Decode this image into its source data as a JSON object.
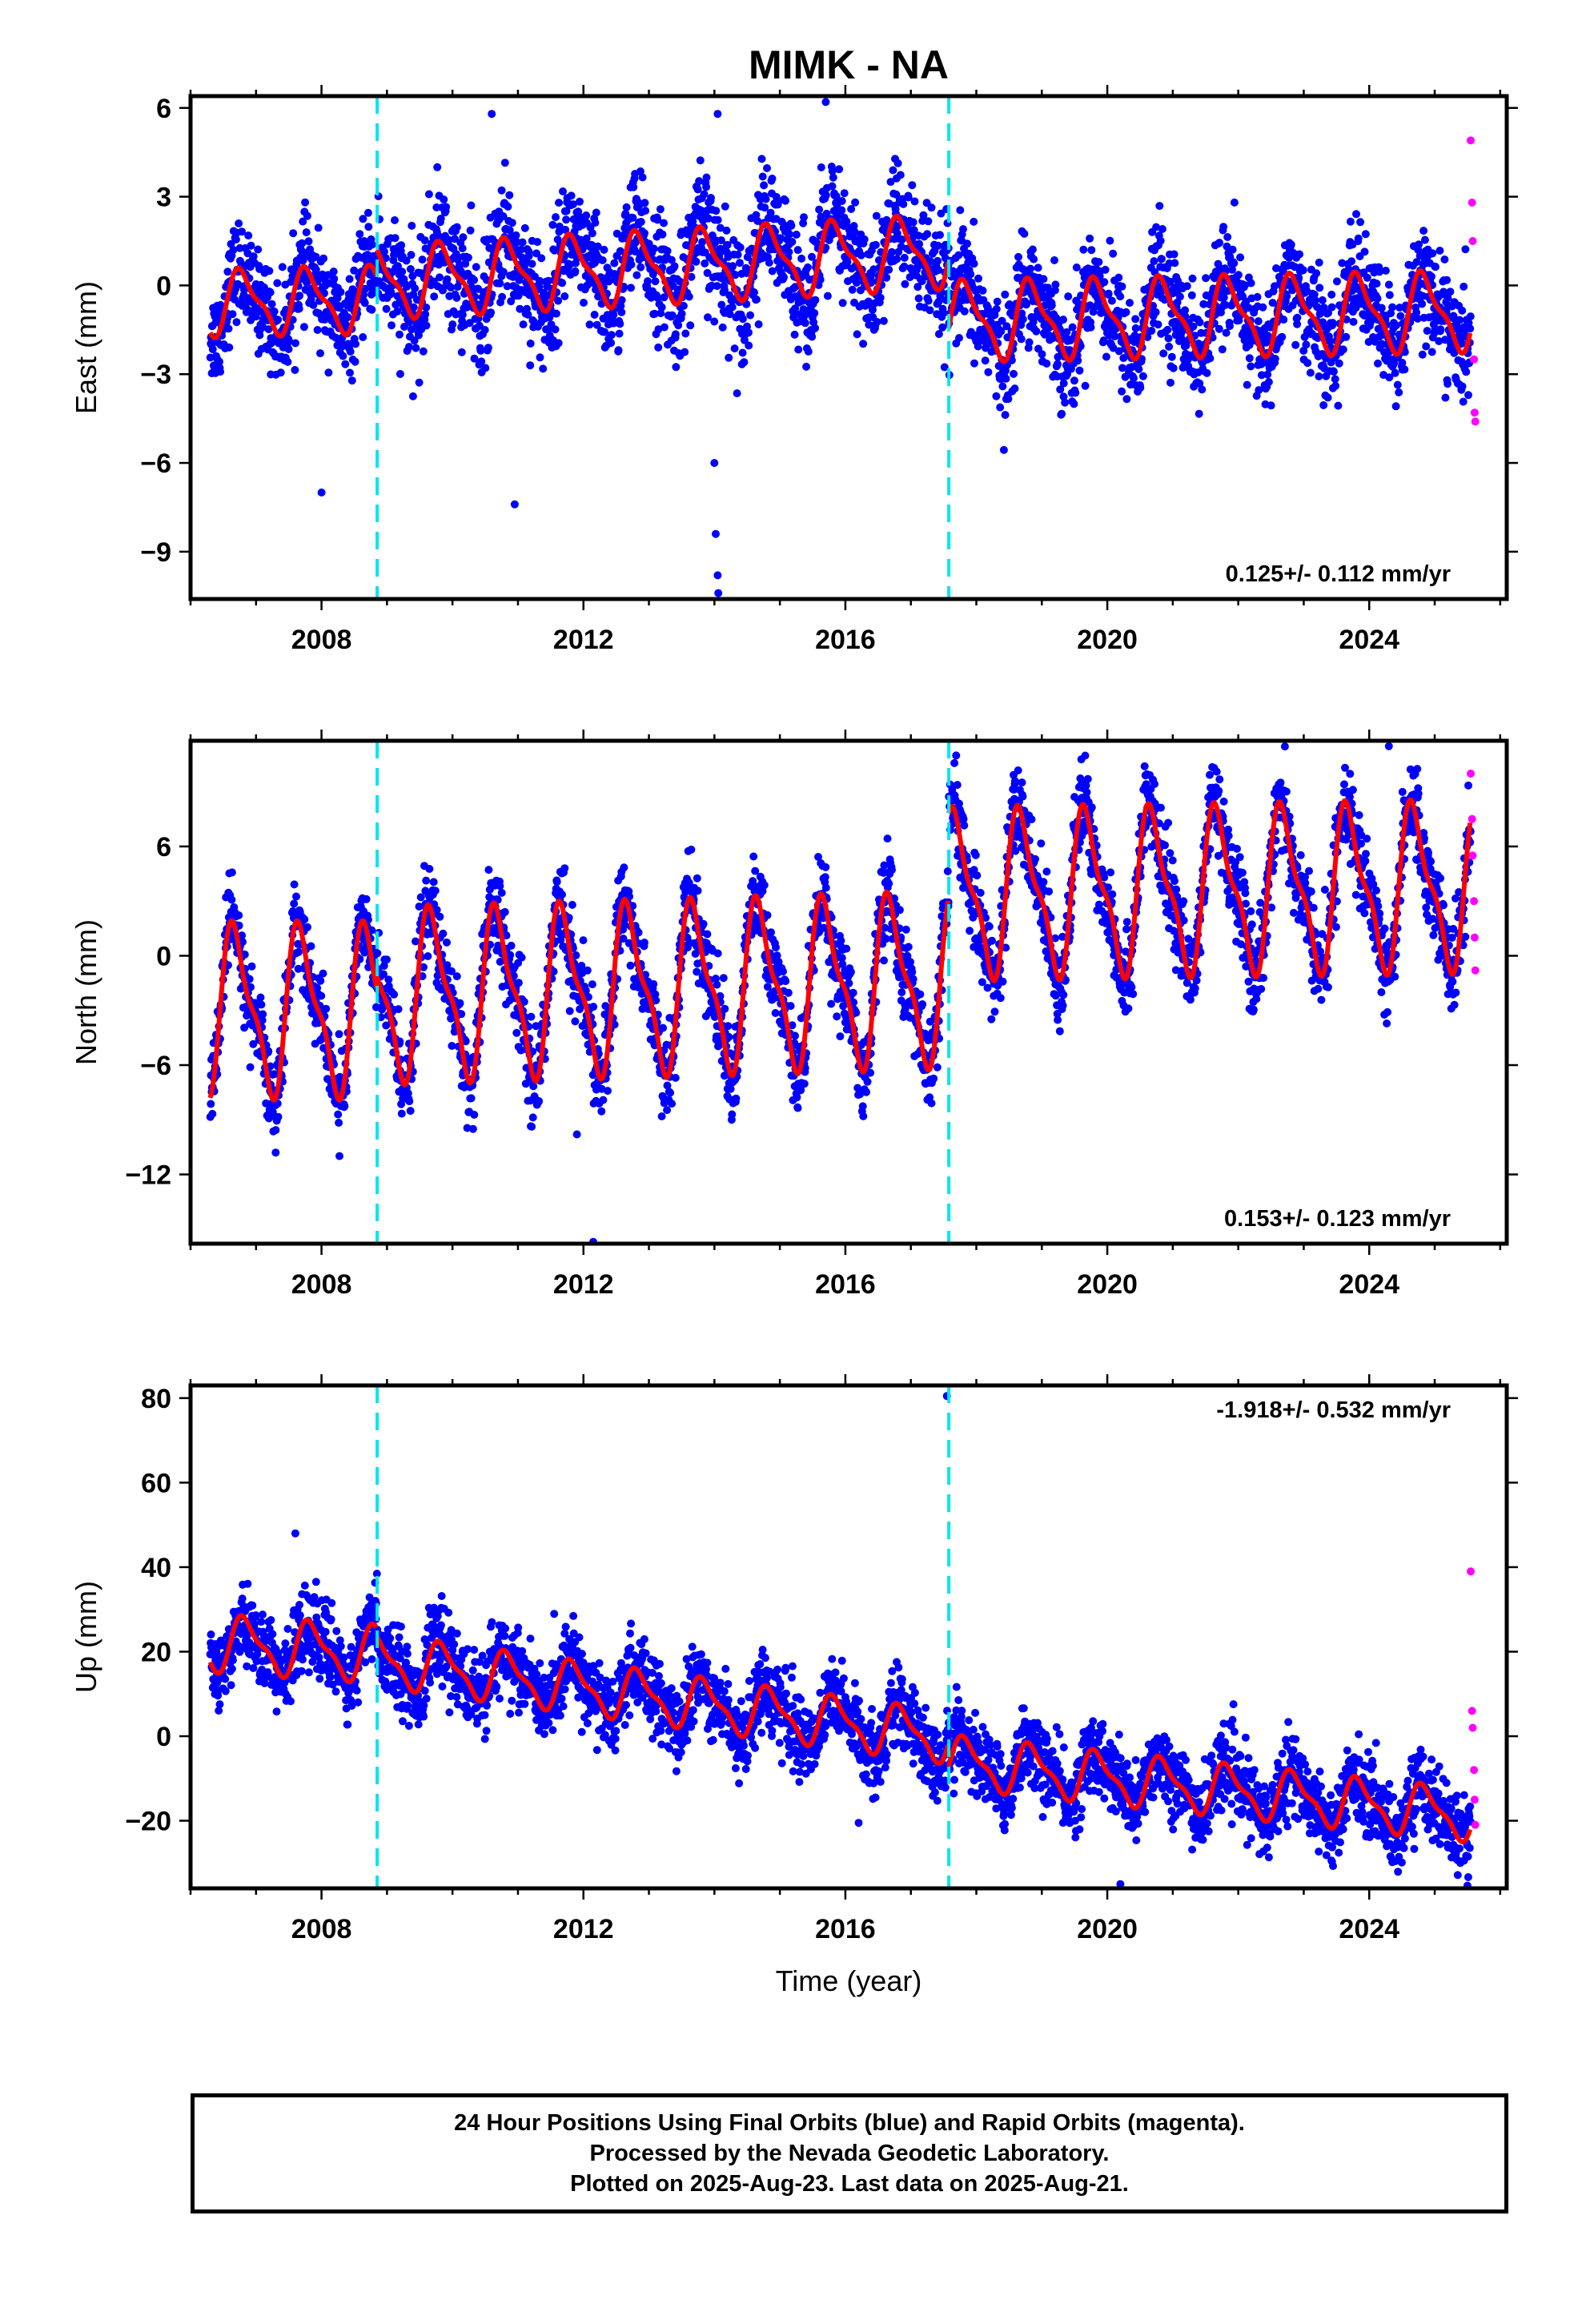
{
  "title": "MIMK - NA",
  "colors": {
    "final_orbits": "#0000ff",
    "rapid_orbits": "#ff00ff",
    "model_fit": "#ff0000",
    "equipment_change": "#00e5ee",
    "frame": "#000000"
  },
  "chart_data": [
    {
      "type": "scatter",
      "component": "east",
      "ylabel": "East (mm)",
      "xlabel": "",
      "xlim": [
        2006.0,
        2026.1
      ],
      "ylim": [
        -10.6,
        6.4
      ],
      "yticks": [
        6,
        3,
        0,
        -3,
        -6,
        -9
      ],
      "ytick_labels": [
        "6",
        "3",
        "0",
        "−3",
        "−6",
        "−9"
      ],
      "xticks": [
        2008,
        2012,
        2016,
        2020,
        2024
      ],
      "xtick_labels": [
        "2008",
        "2012",
        "2016",
        "2020",
        "2024"
      ],
      "rate_label": "0.125+/- 0.112 mm/yr",
      "equipment_changes": [
        2008.85,
        2017.58
      ],
      "series": [
        {
          "kind": "final",
          "segments": [
            {
              "t0": 2006.3,
              "t1": 2008.85,
              "a": -0.6,
              "b": 0.05,
              "amp": 1.0,
              "phase": 0.55,
              "noise": 0.8
            },
            {
              "t0": 2008.85,
              "t1": 2017.58,
              "a": 0.1,
              "b": 0.12,
              "amp": 1.1,
              "phase": 0.6,
              "noise": 1.0
            },
            {
              "t0": 2017.58,
              "t1": 2025.55,
              "a": -1.2,
              "b": 0.04,
              "amp": 1.2,
              "phase": 0.6,
              "noise": 0.9
            }
          ]
        },
        {
          "kind": "rapid",
          "x": [
            2025.55,
            2025.57,
            2025.58,
            2025.6,
            2025.61,
            2025.62
          ],
          "y": [
            4.9,
            2.8,
            1.5,
            -2.5,
            -4.3,
            -4.6
          ]
        }
      ],
      "outliers": [
        [
          2008.0,
          -7.0
        ],
        [
          2010.95,
          -7.4
        ],
        [
          2014.0,
          -6.0
        ],
        [
          2014.02,
          -8.4
        ],
        [
          2014.05,
          -9.8
        ],
        [
          2014.06,
          -10.4
        ],
        [
          2014.05,
          5.8
        ],
        [
          2010.6,
          5.8
        ],
        [
          2015.7,
          6.2
        ]
      ]
    },
    {
      "type": "scatter",
      "component": "north",
      "ylabel": "North (mm)",
      "xlabel": "",
      "xlim": [
        2006.0,
        2026.1
      ],
      "ylim": [
        -15.8,
        11.8
      ],
      "yticks": [
        6,
        0,
        -6,
        -12
      ],
      "ytick_labels": [
        "6",
        "0",
        "−6",
        "−12"
      ],
      "xticks": [
        2008,
        2012,
        2016,
        2020,
        2024
      ],
      "xtick_labels": [
        "2008",
        "2012",
        "2016",
        "2020",
        "2024"
      ],
      "rate_label": "0.153+/- 0.123 mm/yr",
      "equipment_changes": [
        2008.85,
        2017.58
      ],
      "series": [
        {
          "kind": "final",
          "segments": [
            {
              "t0": 2006.3,
              "t1": 2008.85,
              "a": -3.0,
              "b": 0.0,
              "amp": 4.2,
              "phase": 0.45,
              "noise": 1.1
            },
            {
              "t0": 2008.85,
              "t1": 2017.58,
              "a": -2.2,
              "b": 0.1,
              "amp": 4.2,
              "phase": 0.45,
              "noise": 1.2
            },
            {
              "t0": 2017.58,
              "t1": 2025.55,
              "a": 3.4,
              "b": 0.05,
              "amp": 4.1,
              "phase": 0.45,
              "noise": 1.2
            }
          ]
        },
        {
          "kind": "rapid",
          "x": [
            2025.55,
            2025.57,
            2025.58,
            2025.6,
            2025.61,
            2025.62
          ],
          "y": [
            10.0,
            7.5,
            5.5,
            3.0,
            1.0,
            -0.8
          ]
        }
      ],
      "outliers": [
        [
          2012.15,
          -15.7
        ],
        [
          2024.3,
          11.5
        ],
        [
          2007.3,
          -10.8
        ],
        [
          2011.9,
          -9.8
        ]
      ]
    },
    {
      "type": "scatter",
      "component": "up",
      "ylabel": "Up (mm)",
      "xlabel": "Time (year)",
      "xlim": [
        2006.0,
        2026.1
      ],
      "ylim": [
        -36.0,
        83.0
      ],
      "yticks": [
        80,
        60,
        40,
        20,
        0,
        -20
      ],
      "ytick_labels": [
        "80",
        "60",
        "40",
        "20",
        "0",
        "−20"
      ],
      "xticks": [
        2008,
        2012,
        2016,
        2020,
        2024
      ],
      "xtick_labels": [
        "2008",
        "2012",
        "2016",
        "2020",
        "2024"
      ],
      "rate_label": "-1.918+/- 0.532 mm/yr",
      "equipment_changes": [
        2008.85,
        2017.58
      ],
      "series": [
        {
          "kind": "final",
          "segments": [
            {
              "t0": 2006.3,
              "t1": 2008.85,
              "a": 22.0,
              "b": -1.0,
              "amp": 6.0,
              "phase": 0.6,
              "noise": 4.5
            },
            {
              "t0": 2008.85,
              "t1": 2017.58,
              "a": 18.0,
              "b": -2.1,
              "amp": 5.5,
              "phase": 0.6,
              "noise": 4.5
            },
            {
              "t0": 2017.58,
              "t1": 2025.55,
              "a": -6.0,
              "b": -1.6,
              "amp": 5.5,
              "phase": 0.6,
              "noise": 4.5
            }
          ]
        },
        {
          "kind": "rapid",
          "x": [
            2025.55,
            2025.57,
            2025.58,
            2025.6,
            2025.61,
            2025.62
          ],
          "y": [
            39.0,
            6.0,
            2.0,
            -8.0,
            -15.0,
            -21.0
          ]
        }
      ],
      "outliers": [
        [
          2017.55,
          80.5
        ],
        [
          2007.6,
          48.0
        ],
        [
          2020.2,
          -35.0
        ]
      ]
    }
  ],
  "caption": {
    "line1": "24 Hour Positions Using Final Orbits (blue) and Rapid Orbits (magenta).",
    "line2": "Processed by the Nevada Geodetic Laboratory.",
    "line3": "Plotted on 2025-Aug-23. Last data on 2025-Aug-21."
  }
}
